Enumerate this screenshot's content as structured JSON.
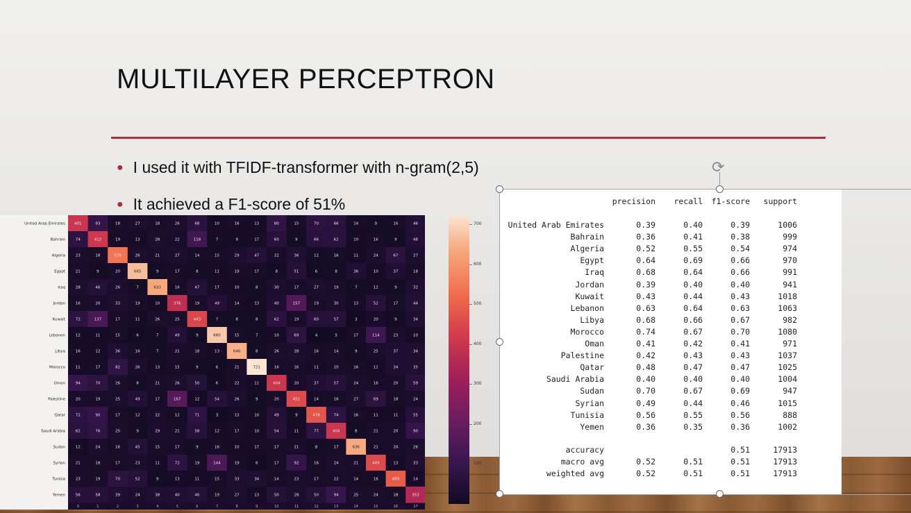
{
  "slide": {
    "title": "MULTILAYER PERCEPTRON",
    "bullets": [
      "I used it with TFIDF-transformer with n-gram(2,5)",
      "It achieved a F1-score of 51%"
    ]
  },
  "colors": {
    "accent_rule": "#b22a3e",
    "bullet": "#b22a3e"
  },
  "chart_data": {
    "type": "heatmap",
    "y_labels": [
      "United Arab Emirates",
      "Bahrain",
      "Algeria",
      "Egypt",
      "Iraq",
      "Jordan",
      "Kuwait",
      "Lebanon",
      "Libya",
      "Morocco",
      "Oman",
      "Palestine",
      "Qatar",
      "Saudi Arabia",
      "Sudan",
      "Syrian",
      "Tunisia",
      "Yemen"
    ],
    "x_labels": [
      "0",
      "1",
      "2",
      "3",
      "4",
      "5",
      "6",
      "7",
      "8",
      "9",
      "10",
      "11",
      "12",
      "13",
      "14",
      "15",
      "16",
      "17"
    ],
    "matrix": [
      [
        401,
        93,
        18,
        27,
        18,
        26,
        68,
        10,
        16,
        13,
        80,
        15,
        70,
        66,
        14,
        9,
        16,
        46
      ],
      [
        74,
        412,
        19,
        13,
        28,
        22,
        118,
        7,
        9,
        17,
        60,
        9,
        66,
        62,
        10,
        16,
        9,
        48
      ],
      [
        23,
        18,
        539,
        26,
        21,
        27,
        14,
        15,
        29,
        47,
        22,
        36,
        12,
        16,
        11,
        24,
        67,
        27
      ],
      [
        21,
        9,
        20,
        665,
        9,
        17,
        8,
        11,
        19,
        17,
        8,
        51,
        6,
        8,
        36,
        10,
        37,
        18
      ],
      [
        28,
        46,
        26,
        7,
        633,
        16,
        47,
        17,
        10,
        8,
        30,
        17,
        27,
        19,
        7,
        12,
        9,
        32
      ],
      [
        16,
        20,
        33,
        19,
        10,
        376,
        19,
        49,
        14,
        13,
        40,
        157,
        19,
        30,
        13,
        52,
        17,
        44
      ],
      [
        72,
        137,
        17,
        11,
        26,
        25,
        443,
        7,
        8,
        8,
        62,
        19,
        60,
        57,
        3,
        20,
        9,
        34
      ],
      [
        12,
        11,
        15,
        6,
        7,
        49,
        9,
        680,
        15,
        7,
        10,
        69,
        4,
        5,
        17,
        114,
        23,
        10
      ],
      [
        16,
        12,
        36,
        16,
        7,
        21,
        18,
        13,
        646,
        8,
        26,
        28,
        16,
        14,
        9,
        25,
        37,
        34
      ],
      [
        11,
        17,
        82,
        26,
        13,
        15,
        9,
        6,
        21,
        721,
        16,
        16,
        11,
        20,
        16,
        11,
        34,
        35
      ],
      [
        94,
        70,
        26,
        8,
        21,
        26,
        50,
        6,
        22,
        11,
        404,
        20,
        37,
        57,
        24,
        16,
        20,
        59
      ],
      [
        20,
        19,
        25,
        49,
        17,
        167,
        12,
        54,
        26,
        9,
        20,
        451,
        14,
        16,
        27,
        69,
        18,
        24
      ],
      [
        72,
        90,
        17,
        12,
        22,
        12,
        71,
        3,
        13,
        10,
        49,
        9,
        478,
        74,
        16,
        11,
        11,
        55
      ],
      [
        62,
        76,
        25,
        9,
        29,
        21,
        58,
        12,
        17,
        10,
        54,
        11,
        77,
        404,
        8,
        21,
        20,
        90
      ],
      [
        12,
        24,
        16,
        45,
        15,
        17,
        9,
        16,
        10,
        17,
        17,
        21,
        8,
        17,
        636,
        21,
        20,
        26
      ],
      [
        21,
        18,
        17,
        23,
        11,
        72,
        19,
        144,
        19,
        6,
        17,
        92,
        16,
        24,
        21,
        449,
        13,
        33
      ],
      [
        23,
        19,
        70,
        52,
        9,
        13,
        11,
        15,
        33,
        34,
        14,
        23,
        17,
        22,
        14,
        16,
        489,
        14
      ],
      [
        56,
        58,
        39,
        24,
        38,
        40,
        46,
        19,
        27,
        13,
        50,
        28,
        50,
        94,
        25,
        24,
        18,
        353
      ]
    ],
    "colorbar_ticks": [
      "700",
      "600",
      "500",
      "400",
      "300",
      "200",
      "100"
    ],
    "colorbar_range": [
      0,
      721
    ]
  },
  "report": {
    "headers": [
      "precision",
      "recall",
      "f1-score",
      "support"
    ],
    "rows": [
      {
        "label": "United Arab Emirates",
        "p": "0.39",
        "r": "0.40",
        "f": "0.39",
        "s": "1006"
      },
      {
        "label": "Bahrain",
        "p": "0.36",
        "r": "0.41",
        "f": "0.38",
        "s": "999"
      },
      {
        "label": "Algeria",
        "p": "0.52",
        "r": "0.55",
        "f": "0.54",
        "s": "974"
      },
      {
        "label": "Egypt",
        "p": "0.64",
        "r": "0.69",
        "f": "0.66",
        "s": "970"
      },
      {
        "label": "Iraq",
        "p": "0.68",
        "r": "0.64",
        "f": "0.66",
        "s": "991"
      },
      {
        "label": "Jordan",
        "p": "0.39",
        "r": "0.40",
        "f": "0.40",
        "s": "941"
      },
      {
        "label": "Kuwait",
        "p": "0.43",
        "r": "0.44",
        "f": "0.43",
        "s": "1018"
      },
      {
        "label": "Lebanon",
        "p": "0.63",
        "r": "0.64",
        "f": "0.63",
        "s": "1063"
      },
      {
        "label": "Libya",
        "p": "0.68",
        "r": "0.66",
        "f": "0.67",
        "s": "982"
      },
      {
        "label": "Morocco",
        "p": "0.74",
        "r": "0.67",
        "f": "0.70",
        "s": "1080"
      },
      {
        "label": "Oman",
        "p": "0.41",
        "r": "0.42",
        "f": "0.41",
        "s": "971"
      },
      {
        "label": "Palestine",
        "p": "0.42",
        "r": "0.43",
        "f": "0.43",
        "s": "1037"
      },
      {
        "label": "Qatar",
        "p": "0.48",
        "r": "0.47",
        "f": "0.47",
        "s": "1025"
      },
      {
        "label": "Saudi Arabia",
        "p": "0.40",
        "r": "0.40",
        "f": "0.40",
        "s": "1004"
      },
      {
        "label": "Sudan",
        "p": "0.70",
        "r": "0.67",
        "f": "0.69",
        "s": "947"
      },
      {
        "label": "Syrian",
        "p": "0.49",
        "r": "0.44",
        "f": "0.46",
        "s": "1015"
      },
      {
        "label": "Tunisia",
        "p": "0.56",
        "r": "0.55",
        "f": "0.56",
        "s": "888"
      },
      {
        "label": "Yemen",
        "p": "0.36",
        "r": "0.35",
        "f": "0.36",
        "s": "1002"
      }
    ],
    "summary": [
      {
        "label": "accuracy",
        "p": "",
        "r": "",
        "f": "0.51",
        "s": "17913"
      },
      {
        "label": "macro avg",
        "p": "0.52",
        "r": "0.51",
        "f": "0.51",
        "s": "17913"
      },
      {
        "label": "weighted avg",
        "p": "0.52",
        "r": "0.51",
        "f": "0.51",
        "s": "17913"
      }
    ]
  }
}
